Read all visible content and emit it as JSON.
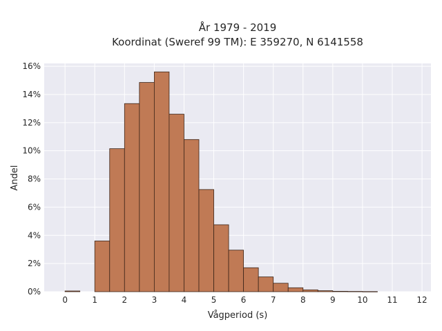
{
  "chart_data": {
    "type": "bar",
    "title": "År 1979 - 2019",
    "subtitle": "Koordinat (Sweref 99 TM): E 359270, N 6141558",
    "xlabel": "Vågperiod (s)",
    "ylabel": "Andel",
    "xlim": [
      -0.7,
      12.3
    ],
    "ylim": [
      0,
      16.2
    ],
    "x_ticks": [
      0,
      1,
      2,
      3,
      4,
      5,
      6,
      7,
      8,
      9,
      10,
      11,
      12
    ],
    "y_ticks": [
      0,
      2,
      4,
      6,
      8,
      10,
      12,
      14,
      16
    ],
    "y_tick_labels": [
      "0%",
      "2%",
      "4%",
      "6%",
      "8%",
      "10%",
      "12%",
      "14%",
      "16%"
    ],
    "bin_width": 0.5,
    "bins": [
      {
        "x0": 0.0,
        "x1": 0.5,
        "value": 0.05
      },
      {
        "x0": 1.0,
        "x1": 1.5,
        "value": 3.6
      },
      {
        "x0": 1.5,
        "x1": 2.0,
        "value": 10.15
      },
      {
        "x0": 2.0,
        "x1": 2.5,
        "value": 13.35
      },
      {
        "x0": 2.5,
        "x1": 3.0,
        "value": 14.85
      },
      {
        "x0": 3.0,
        "x1": 3.5,
        "value": 15.6
      },
      {
        "x0": 3.5,
        "x1": 4.0,
        "value": 12.6
      },
      {
        "x0": 4.0,
        "x1": 4.5,
        "value": 10.8
      },
      {
        "x0": 4.5,
        "x1": 5.0,
        "value": 7.25
      },
      {
        "x0": 5.0,
        "x1": 5.5,
        "value": 4.75
      },
      {
        "x0": 5.5,
        "x1": 6.0,
        "value": 2.95
      },
      {
        "x0": 6.0,
        "x1": 6.5,
        "value": 1.7
      },
      {
        "x0": 6.5,
        "x1": 7.0,
        "value": 1.05
      },
      {
        "x0": 7.0,
        "x1": 7.5,
        "value": 0.6
      },
      {
        "x0": 7.5,
        "x1": 8.0,
        "value": 0.28
      },
      {
        "x0": 8.0,
        "x1": 8.5,
        "value": 0.13
      },
      {
        "x0": 8.5,
        "x1": 9.0,
        "value": 0.07
      },
      {
        "x0": 9.0,
        "x1": 9.5,
        "value": 0.03
      },
      {
        "x0": 9.5,
        "x1": 10.0,
        "value": 0.02
      },
      {
        "x0": 10.0,
        "x1": 10.5,
        "value": 0.01
      }
    ],
    "grid": true,
    "colors": {
      "bar_fill": "#c07a55",
      "bar_edge": "#3b2418",
      "plot_bg": "#eaeaf2",
      "grid": "#ffffff"
    }
  }
}
